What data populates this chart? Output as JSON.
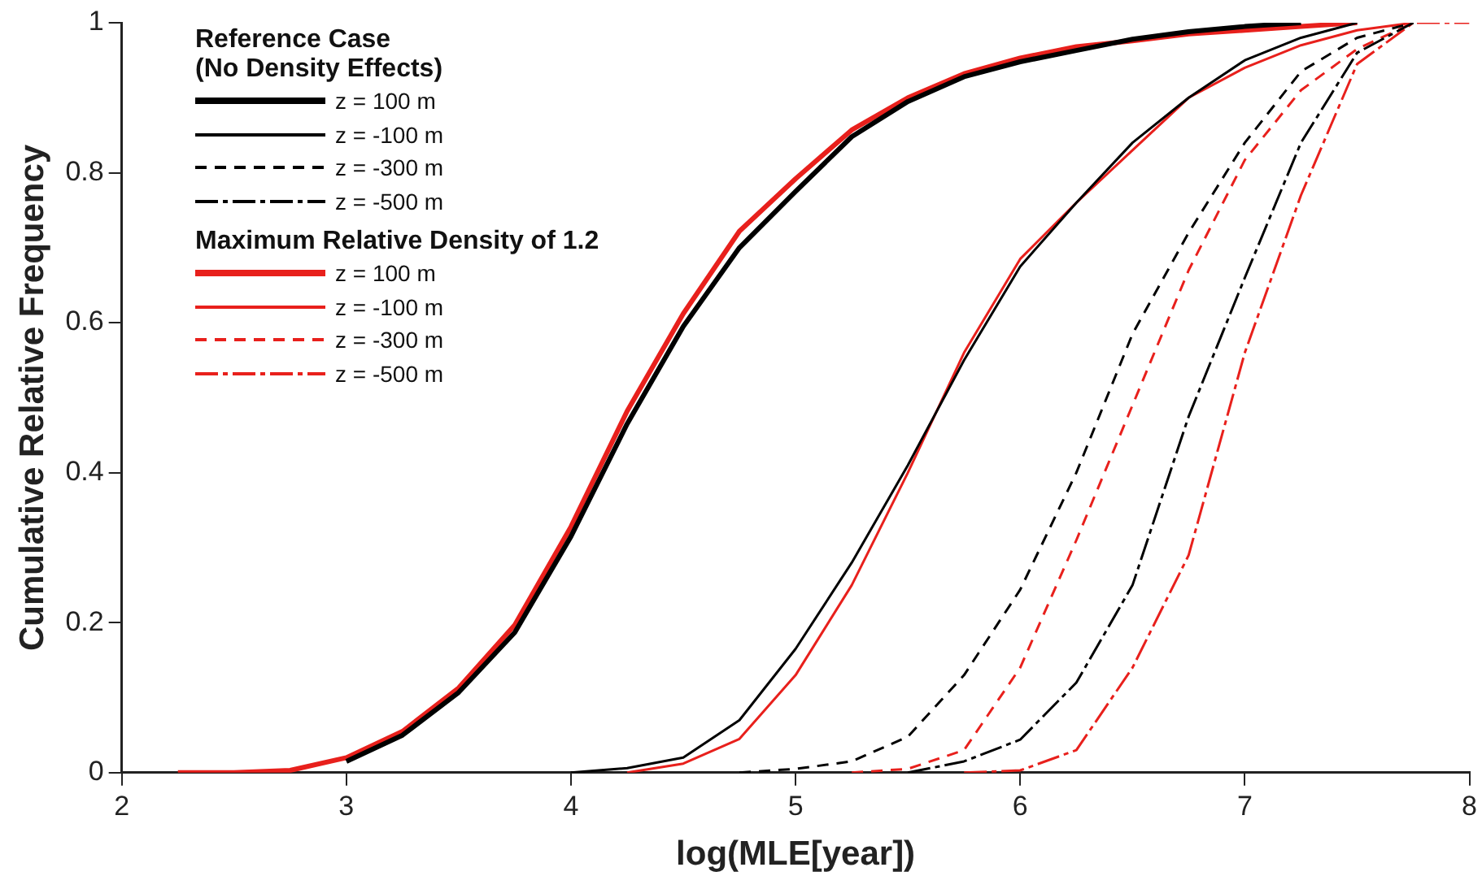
{
  "chart_data": {
    "type": "line",
    "xlabel": "log(MLE[year])",
    "ylabel": "Cumulative Relative Frequency",
    "legend_title": "Reference Case\n(No Density Effects)",
    "annotations": [
      "Maximum Relative Density of 1.2"
    ],
    "xlim": [
      2,
      8
    ],
    "xticks": [
      2,
      3,
      4,
      5,
      6,
      7,
      8
    ],
    "ylim": [
      0,
      1
    ],
    "yticks": [
      0,
      0.2,
      0.4,
      0.6,
      0.8,
      1
    ],
    "grid": false,
    "legend": "top left",
    "marker": "none",
    "series": [
      {
        "name": "z = 100 m",
        "color": "#000000",
        "line_style": "solid",
        "x": [
          3,
          3.25,
          3.5,
          3.75,
          4,
          4.25,
          4.5,
          4.75,
          5,
          5.25,
          5.5,
          5.75,
          6,
          6.25,
          6.5,
          6.75,
          7,
          7.25
        ],
        "values": [
          0.015,
          0.05,
          0.107,
          0.187,
          0.315,
          0.465,
          0.595,
          0.7,
          0.775,
          0.848,
          0.895,
          0.928,
          0.948,
          0.963,
          0.978,
          0.988,
          0.995,
          1
        ]
      },
      {
        "name": "z = -100 m",
        "color": "#000000",
        "line_style": "solid",
        "x": [
          4,
          4.25,
          4.5,
          4.75,
          5,
          5.25,
          5.5,
          5.75,
          6,
          6.25,
          6.5,
          6.75,
          7,
          7.25,
          7.5
        ],
        "values": [
          0,
          0.006,
          0.02,
          0.07,
          0.165,
          0.28,
          0.41,
          0.55,
          0.675,
          0.76,
          0.84,
          0.9,
          0.95,
          0.98,
          1
        ]
      },
      {
        "name": "z = -300 m",
        "color": "#000000",
        "line_style": "dashed",
        "x": [
          4.75,
          5,
          5.25,
          5.5,
          5.75,
          6,
          6.25,
          6.5,
          6.75,
          7,
          7.25,
          7.5,
          7.75
        ],
        "values": [
          0,
          0.005,
          0.015,
          0.048,
          0.13,
          0.244,
          0.4,
          0.585,
          0.72,
          0.84,
          0.935,
          0.98,
          1
        ]
      },
      {
        "name": "z = -500 m",
        "color": "#000000",
        "line_style": "dashdot",
        "x": [
          5.5,
          5.75,
          6,
          6.25,
          6.5,
          6.75,
          7,
          7.25,
          7.5,
          7.75
        ],
        "values": [
          0,
          0.015,
          0.044,
          0.12,
          0.25,
          0.475,
          0.66,
          0.84,
          0.96,
          1
        ]
      },
      {
        "name": "z = 100 m",
        "color": "#e8201c",
        "line_style": "solid",
        "x": [
          2.25,
          2.5,
          2.75,
          3,
          3.25,
          3.5,
          3.75,
          4,
          4.25,
          4.5,
          4.75,
          5,
          5.25,
          5.5,
          5.75,
          6,
          6.25,
          6.5,
          6.75,
          7,
          7.25,
          7.5
        ],
        "values": [
          0,
          0,
          0.003,
          0.02,
          0.055,
          0.113,
          0.197,
          0.328,
          0.482,
          0.612,
          0.722,
          0.792,
          0.857,
          0.9,
          0.932,
          0.953,
          0.968,
          0.976,
          0.985,
          0.99,
          0.995,
          1
        ]
      },
      {
        "name": "z = -100 m",
        "color": "#e8201c",
        "line_style": "solid",
        "x": [
          4.25,
          4.5,
          4.75,
          5,
          5.25,
          5.5,
          5.75,
          6,
          6.25,
          6.5,
          6.75,
          7,
          7.25,
          7.5,
          7.75
        ],
        "values": [
          0,
          0.012,
          0.045,
          0.13,
          0.25,
          0.4,
          0.56,
          0.685,
          0.76,
          0.83,
          0.9,
          0.94,
          0.97,
          0.99,
          1
        ]
      },
      {
        "name": "z = -300 m",
        "color": "#e8201c",
        "line_style": "dashed",
        "x": [
          5.25,
          5.5,
          5.75,
          6,
          6.25,
          6.5,
          6.75,
          7,
          7.25,
          7.5,
          7.75
        ],
        "values": [
          0,
          0.005,
          0.03,
          0.14,
          0.31,
          0.49,
          0.67,
          0.817,
          0.91,
          0.965,
          1
        ]
      },
      {
        "name": "z = -500 m",
        "color": "#e8201c",
        "line_style": "dashdot",
        "x": [
          5.75,
          6,
          6.25,
          6.5,
          6.75,
          7,
          7.25,
          7.5,
          7.75,
          8
        ],
        "values": [
          0,
          0.003,
          0.03,
          0.14,
          0.29,
          0.56,
          0.77,
          0.945,
          1,
          1
        ]
      }
    ]
  }
}
